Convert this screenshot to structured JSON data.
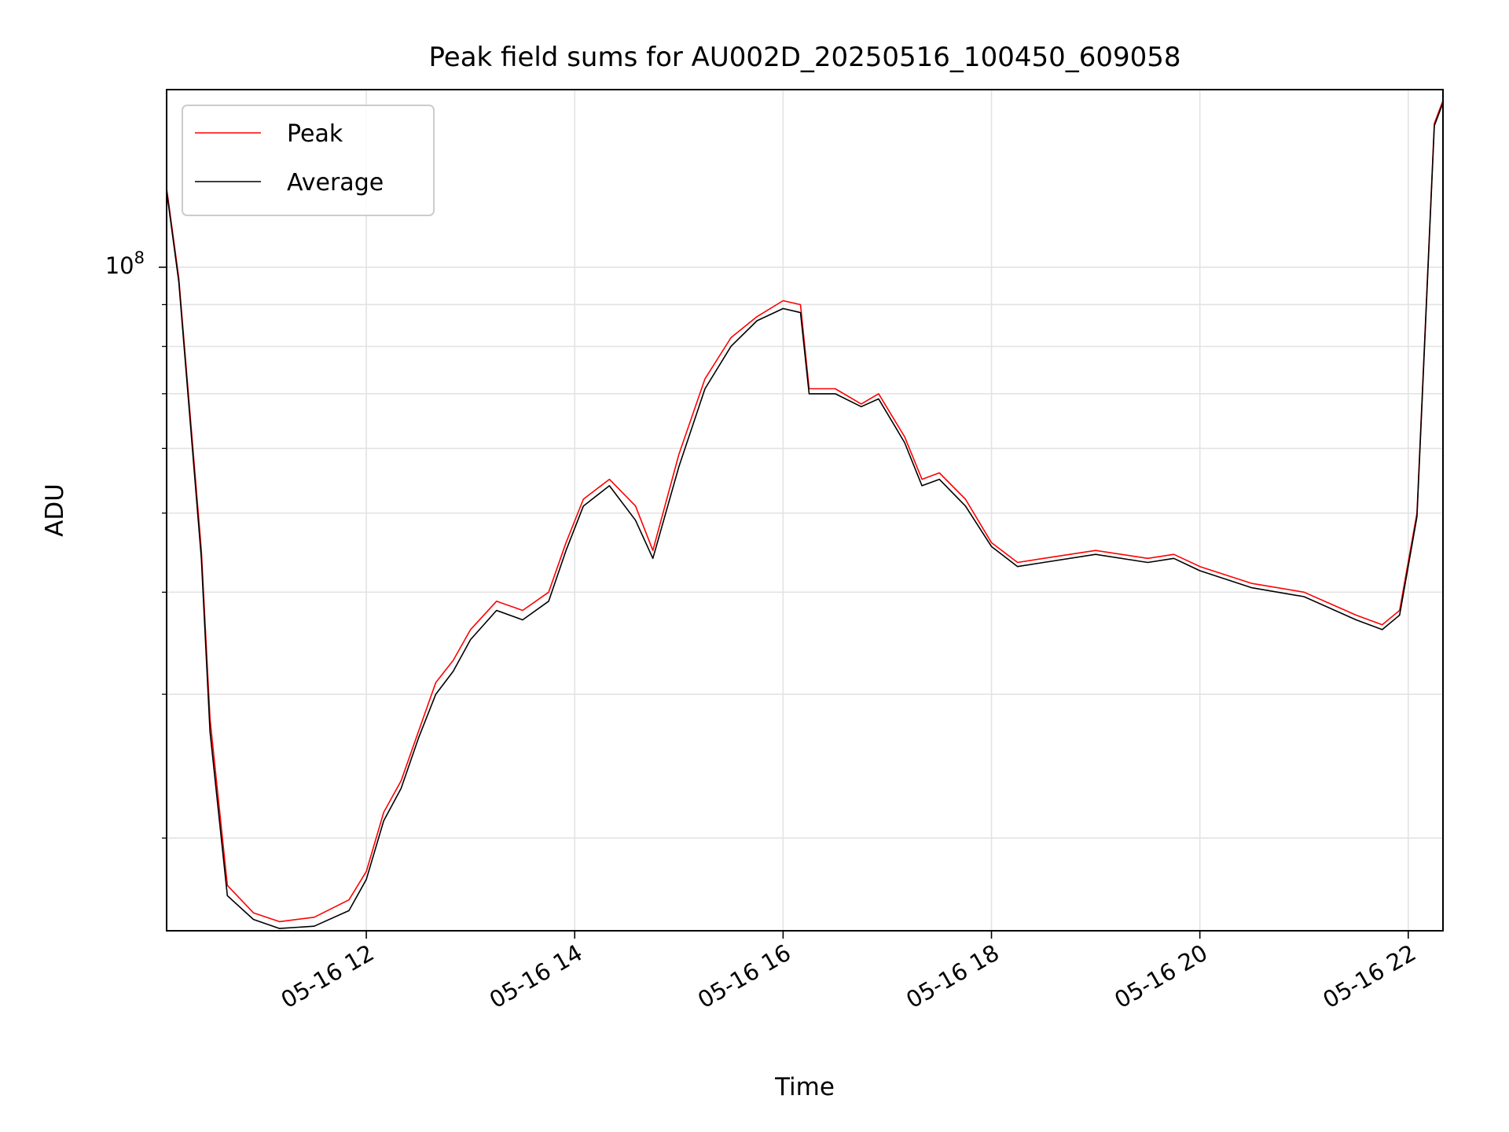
{
  "chart_data": {
    "type": "line",
    "title": "Peak field sums for AU002D_20250516_100450_609058",
    "xlabel": "Time",
    "ylabel": "ADU",
    "x_range": [
      "2025-05-16 10:05",
      "2025-05-16 22:20"
    ],
    "y_scale": "log",
    "ylim": [
      15400000,
      165000000
    ],
    "grid": true,
    "legend_position": "upper left",
    "x_tick_labels": [
      "05-16 12",
      "05-16 14",
      "05-16 16",
      "05-16 18",
      "05-16 20",
      "05-16 22"
    ],
    "x_ticks": [
      "2025-05-16 12:00",
      "2025-05-16 14:00",
      "2025-05-16 16:00",
      "2025-05-16 18:00",
      "2025-05-16 20:00",
      "2025-05-16 22:00"
    ],
    "y_major_ticks": [
      {
        "value": 100000000,
        "base": "10",
        "exponent": "8"
      }
    ],
    "y_minor_ticks": [
      20000000,
      30000000,
      40000000,
      50000000,
      60000000,
      70000000,
      80000000,
      90000000
    ],
    "series": [
      {
        "name": "Peak",
        "color": "#ff0000",
        "x": [
          "2025-05-16 10:05",
          "2025-05-16 10:12",
          "2025-05-16 10:25",
          "2025-05-16 10:30",
          "2025-05-16 10:40",
          "2025-05-16 10:55",
          "2025-05-16 11:10",
          "2025-05-16 11:30",
          "2025-05-16 11:50",
          "2025-05-16 12:00",
          "2025-05-16 12:10",
          "2025-05-16 12:20",
          "2025-05-16 12:30",
          "2025-05-16 12:40",
          "2025-05-16 12:50",
          "2025-05-16 13:00",
          "2025-05-16 13:15",
          "2025-05-16 13:30",
          "2025-05-16 13:45",
          "2025-05-16 13:55",
          "2025-05-16 14:05",
          "2025-05-16 14:20",
          "2025-05-16 14:35",
          "2025-05-16 14:45",
          "2025-05-16 15:00",
          "2025-05-16 15:15",
          "2025-05-16 15:30",
          "2025-05-16 15:45",
          "2025-05-16 16:00",
          "2025-05-16 16:10",
          "2025-05-16 16:15",
          "2025-05-16 16:30",
          "2025-05-16 16:45",
          "2025-05-16 16:55",
          "2025-05-16 17:10",
          "2025-05-16 17:20",
          "2025-05-16 17:30",
          "2025-05-16 17:45",
          "2025-05-16 18:00",
          "2025-05-16 18:15",
          "2025-05-16 18:30",
          "2025-05-16 19:00",
          "2025-05-16 19:30",
          "2025-05-16 19:45",
          "2025-05-16 20:00",
          "2025-05-16 20:30",
          "2025-05-16 21:00",
          "2025-05-16 21:30",
          "2025-05-16 21:45",
          "2025-05-16 21:55",
          "2025-05-16 22:05",
          "2025-05-16 22:15",
          "2025-05-16 22:20"
        ],
        "values": [
          125000000,
          97000000,
          45000000,
          28000000,
          17500000,
          16200000,
          15800000,
          16000000,
          16800000,
          18200000,
          21500000,
          23500000,
          27000000,
          31000000,
          33000000,
          36000000,
          39000000,
          38000000,
          40000000,
          46000000,
          52000000,
          55000000,
          51000000,
          45000000,
          59000000,
          73000000,
          82000000,
          87000000,
          91000000,
          90000000,
          71000000,
          71000000,
          68000000,
          70000000,
          62000000,
          55000000,
          56000000,
          52000000,
          46000000,
          43500000,
          44000000,
          45000000,
          44000000,
          44500000,
          43000000,
          41000000,
          40000000,
          37500000,
          36500000,
          38000000,
          50000000,
          150000000,
          160000000
        ]
      },
      {
        "name": "Average",
        "color": "#000000",
        "x": [
          "2025-05-16 10:05",
          "2025-05-16 10:12",
          "2025-05-16 10:25",
          "2025-05-16 10:30",
          "2025-05-16 10:40",
          "2025-05-16 10:55",
          "2025-05-16 11:10",
          "2025-05-16 11:30",
          "2025-05-16 11:50",
          "2025-05-16 12:00",
          "2025-05-16 12:10",
          "2025-05-16 12:20",
          "2025-05-16 12:30",
          "2025-05-16 12:40",
          "2025-05-16 12:50",
          "2025-05-16 13:00",
          "2025-05-16 13:15",
          "2025-05-16 13:30",
          "2025-05-16 13:45",
          "2025-05-16 13:55",
          "2025-05-16 14:05",
          "2025-05-16 14:20",
          "2025-05-16 14:35",
          "2025-05-16 14:45",
          "2025-05-16 15:00",
          "2025-05-16 15:15",
          "2025-05-16 15:30",
          "2025-05-16 15:45",
          "2025-05-16 16:00",
          "2025-05-16 16:10",
          "2025-05-16 16:15",
          "2025-05-16 16:30",
          "2025-05-16 16:45",
          "2025-05-16 16:55",
          "2025-05-16 17:10",
          "2025-05-16 17:20",
          "2025-05-16 17:30",
          "2025-05-16 17:45",
          "2025-05-16 18:00",
          "2025-05-16 18:15",
          "2025-05-16 18:30",
          "2025-05-16 19:00",
          "2025-05-16 19:30",
          "2025-05-16 19:45",
          "2025-05-16 20:00",
          "2025-05-16 20:30",
          "2025-05-16 21:00",
          "2025-05-16 21:30",
          "2025-05-16 21:45",
          "2025-05-16 21:55",
          "2025-05-16 22:05",
          "2025-05-16 22:15",
          "2025-05-16 22:20"
        ],
        "values": [
          124000000,
          96000000,
          44000000,
          27000000,
          17000000,
          15900000,
          15500000,
          15600000,
          16300000,
          17800000,
          21000000,
          23000000,
          26500000,
          30000000,
          32000000,
          35000000,
          38000000,
          37000000,
          39000000,
          45000000,
          51000000,
          54000000,
          49000000,
          44000000,
          57000000,
          71000000,
          80000000,
          86000000,
          89000000,
          88000000,
          70000000,
          70000000,
          67500000,
          69000000,
          61000000,
          54000000,
          55000000,
          51000000,
          45500000,
          43000000,
          43500000,
          44500000,
          43500000,
          44000000,
          42500000,
          40500000,
          39500000,
          37000000,
          36000000,
          37500000,
          49500000,
          149000000,
          159000000
        ]
      }
    ]
  }
}
